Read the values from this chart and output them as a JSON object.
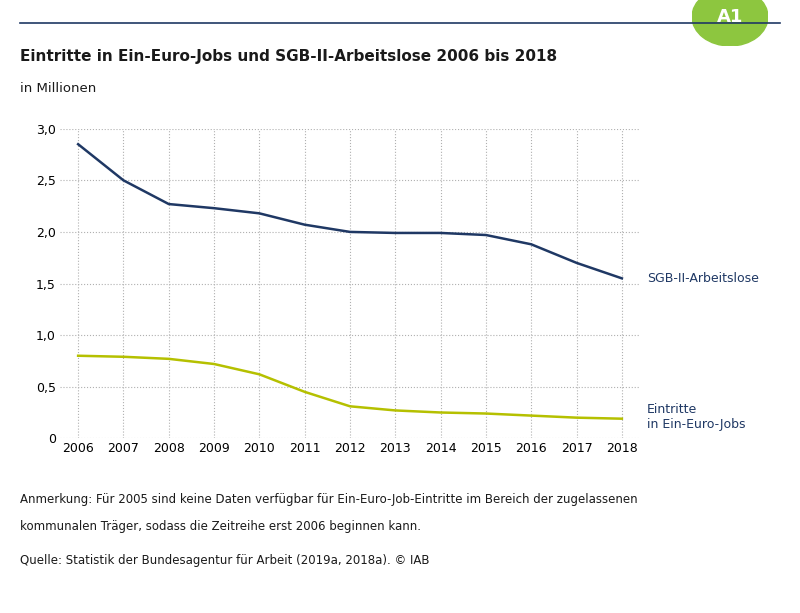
{
  "title": "Eintritte in Ein-Euro-Jobs und SGB-II-Arbeitslose 2006 bis 2018",
  "subtitle": "in Millionen",
  "years": [
    2006,
    2007,
    2008,
    2009,
    2010,
    2011,
    2012,
    2013,
    2014,
    2015,
    2016,
    2017,
    2018
  ],
  "sgb2": [
    2.85,
    2.5,
    2.27,
    2.23,
    2.18,
    2.07,
    2.0,
    1.99,
    1.99,
    1.97,
    1.88,
    1.7,
    1.55
  ],
  "eintritte": [
    0.8,
    0.79,
    0.77,
    0.72,
    0.62,
    0.45,
    0.31,
    0.27,
    0.25,
    0.24,
    0.22,
    0.2,
    0.19
  ],
  "sgb2_color": "#1f3864",
  "eintritte_color": "#b5c000",
  "label_color": "#1f3864",
  "grid_color": "#b0b0b0",
  "background_color": "#ffffff",
  "ylim": [
    0,
    3.0
  ],
  "yticks": [
    0,
    0.5,
    1.0,
    1.5,
    2.0,
    2.5,
    3.0
  ],
  "ytick_labels": [
    "0",
    "0,5",
    "1,0",
    "1,5",
    "2,0",
    "2,5",
    "3,0"
  ],
  "label_sgb2": "SGB-II-Arbeitslose",
  "label_eintritte_line1": "Eintritte",
  "label_eintritte_line2": "in Ein-Euro-Jobs",
  "footnote_line1": "Anmerkung: Für 2005 sind keine Daten verfügbar für Ein-Euro-Job-Eintritte im Bereich der zugelassenen",
  "footnote_line2": "kommunalen Träger, sodass die Zeitreihe erst 2006 beginnen kann.",
  "source": "Quelle: Statistik der Bundesagentur für Arbeit (2019a, 2018a). © IAB",
  "badge_text": "A1",
  "badge_color": "#8dc63f",
  "line_width": 1.8,
  "top_border_color": "#1f3864",
  "tick_fontsize": 9,
  "label_fontsize": 9,
  "title_fontsize": 11,
  "footnote_fontsize": 8.5
}
